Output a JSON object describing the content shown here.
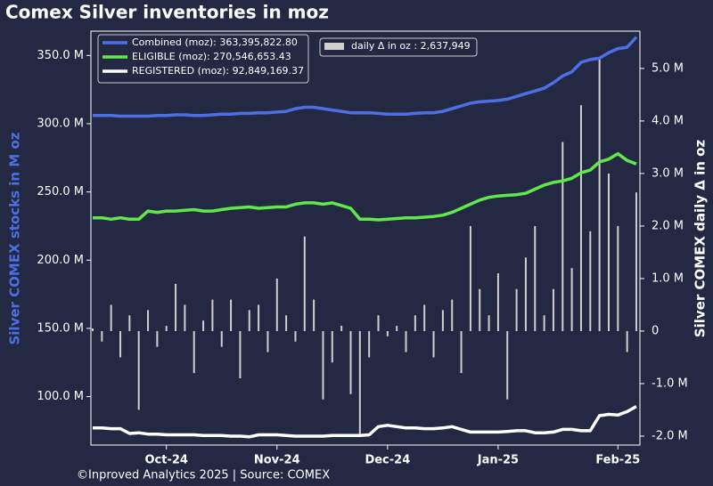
{
  "chart_data": {
    "type": "line",
    "title": "Comex Silver inventories in moz",
    "ylabel": "Silver COMEX stocks in M oz",
    "y2label": "Silver COMEX daily Δ in oz",
    "footer": "©Inproved Analytics 2025 | Source: COMEX",
    "categories": [
      null,
      null,
      null,
      null,
      null,
      null,
      null,
      null,
      "Oct-24",
      null,
      null,
      null,
      null,
      null,
      null,
      null,
      null,
      null,
      null,
      null,
      "Nov-24",
      null,
      null,
      null,
      null,
      null,
      null,
      null,
      null,
      null,
      null,
      null,
      "Dec-24",
      null,
      null,
      null,
      null,
      null,
      null,
      null,
      null,
      null,
      null,
      null,
      "Jan-25",
      null,
      null,
      null,
      null,
      null,
      null,
      null,
      null,
      null,
      null,
      null,
      null,
      "Feb-25",
      null,
      null
    ],
    "series": [
      {
        "name": "Combined (moz): 363,395,822.80",
        "color": "#4e6fe3",
        "values": [
          306,
          306,
          306,
          305.5,
          305.5,
          305.5,
          305.5,
          306,
          306,
          306.5,
          306.5,
          306,
          306,
          306.5,
          307,
          307,
          307.5,
          307.5,
          308,
          308,
          308.5,
          309,
          311,
          312,
          312,
          311,
          310,
          309,
          308,
          308,
          308,
          307.5,
          307,
          307,
          307,
          307.5,
          308,
          308,
          309,
          311,
          313,
          315,
          316,
          316.5,
          317,
          318,
          320,
          322,
          324,
          326,
          330,
          335,
          338,
          345,
          347,
          348,
          352,
          355,
          356,
          363.4
        ]
      },
      {
        "name": "ELIGIBLE (moz): 270,546,653.43",
        "color": "#62e84a",
        "values": [
          231,
          231,
          230,
          231,
          230,
          230,
          236,
          235,
          236,
          236,
          236.5,
          237,
          236,
          236,
          237,
          238,
          238.5,
          239,
          238,
          238.5,
          239,
          239,
          241,
          242,
          242,
          241,
          242,
          240,
          238,
          230,
          230,
          229.5,
          230,
          230.5,
          231,
          231,
          231.5,
          232,
          233,
          235,
          238,
          241,
          244,
          246,
          247,
          247.5,
          248,
          249,
          252,
          255,
          257,
          258,
          260,
          264,
          266,
          272,
          274,
          278,
          273,
          270.5
        ]
      },
      {
        "name": "REGISTERED (moz): 92,849,169.37",
        "color": "#ffffff",
        "values": [
          77,
          77,
          76.5,
          76.5,
          73,
          73.5,
          72.5,
          72.5,
          72,
          72,
          72,
          72,
          71.5,
          71.5,
          71.5,
          71,
          71,
          70.5,
          72,
          72,
          72,
          71.5,
          71,
          71,
          71,
          71,
          71.5,
          71.5,
          71.5,
          71.5,
          72,
          78,
          79,
          78,
          77,
          77,
          76.5,
          76.5,
          77,
          78,
          76,
          74,
          74,
          74,
          74,
          74.5,
          75,
          75,
          73.5,
          73.5,
          74,
          76,
          76,
          75,
          75,
          86,
          87,
          86.5,
          89,
          92.8
        ]
      },
      {
        "name": "daily Δ in oz : 2,637,949",
        "color": "#cfcfcf",
        "type": "bar",
        "axis": "y2",
        "values": [
          0.05,
          -0.2,
          0.5,
          -0.5,
          0.3,
          -1.5,
          0.4,
          -0.3,
          0.1,
          0.9,
          0.5,
          -0.8,
          0.2,
          0.6,
          -0.3,
          0.6,
          -0.9,
          0.4,
          0.5,
          -0.4,
          1.0,
          0.3,
          -0.2,
          1.8,
          0.6,
          -1.3,
          -0.6,
          0.1,
          -1.2,
          -2.0,
          -0.5,
          0.3,
          -0.1,
          0.1,
          -0.4,
          0.3,
          0.5,
          -0.5,
          0.4,
          0.6,
          -0.8,
          2.0,
          0.8,
          0.3,
          1.1,
          -1.3,
          0.8,
          1.4,
          2.0,
          0.3,
          0.8,
          3.6,
          1.2,
          4.3,
          1.9,
          5.2,
          3.0,
          2.0,
          -0.4,
          2.64
        ]
      }
    ],
    "ylim": [
      64.5,
      367.8
    ],
    "yticks": [
      {
        "value": 100,
        "label": "100.0 M"
      },
      {
        "value": 150,
        "label": "150.0 M"
      },
      {
        "value": 200,
        "label": "200.0 M"
      },
      {
        "value": 250,
        "label": "250.0 M"
      },
      {
        "value": 300,
        "label": "300.0 M"
      },
      {
        "value": 350,
        "label": "350.0 M"
      }
    ],
    "y2lim": [
      -2.17,
      5.71
    ],
    "y2ticks": [
      {
        "value": -2,
        "label": "-2.0 M"
      },
      {
        "value": -1,
        "label": "-1.0 M"
      },
      {
        "value": 0,
        "label": "0"
      },
      {
        "value": 1,
        "label": "1.0 M"
      },
      {
        "value": 2,
        "label": "2.0 M"
      },
      {
        "value": 3,
        "label": "3.0 M"
      },
      {
        "value": 4,
        "label": "4.0 M"
      },
      {
        "value": 5,
        "label": "5.0 M"
      }
    ]
  }
}
